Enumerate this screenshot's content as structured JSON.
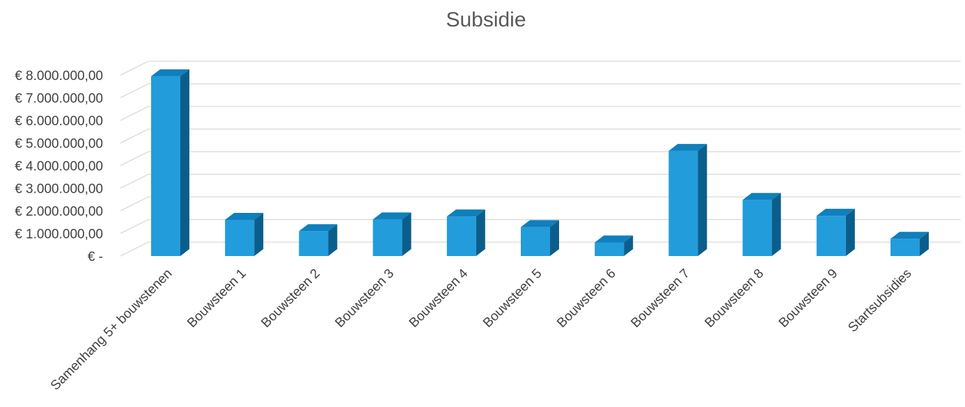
{
  "chart_data": {
    "type": "bar",
    "title": "Subsidie",
    "xlabel": "",
    "ylabel": "",
    "categories": [
      "Samenhang 5+ bouwstenen",
      "Bouwsteen 1",
      "Bouwsteen 2",
      "Bouwsteen 3",
      "Bouwsteen 4",
      "Bouwsteen 5",
      "Bouwsteen 6",
      "Bouwsteen 7",
      "Bouwsteen 8",
      "Bouwsteen 9",
      "Startsubsidies"
    ],
    "values": [
      7950000,
      1600000,
      1100000,
      1620000,
      1750000,
      1280000,
      600000,
      4650000,
      2480000,
      1780000,
      760000
    ],
    "ylim": [
      0,
      8000000
    ],
    "yticks": [
      {
        "value": 0,
        "label": "€ -"
      },
      {
        "value": 1000000,
        "label": "€ 1.000.000,00"
      },
      {
        "value": 2000000,
        "label": "€ 2.000.000,00"
      },
      {
        "value": 3000000,
        "label": "€ 3.000.000,00"
      },
      {
        "value": 4000000,
        "label": "€ 4.000.000,00"
      },
      {
        "value": 5000000,
        "label": "€ 5.000.000,00"
      },
      {
        "value": 6000000,
        "label": "€ 6.000.000,00"
      },
      {
        "value": 7000000,
        "label": "€ 7.000.000,00"
      },
      {
        "value": 8000000,
        "label": "€ 8.000.000,00"
      }
    ],
    "grid": true,
    "legend": "none",
    "style": "3d-column",
    "colors": {
      "front": "#229cdb",
      "top": "#0f7fbd",
      "side": "#0b5e8c",
      "grid": "#d9d9d9"
    }
  }
}
